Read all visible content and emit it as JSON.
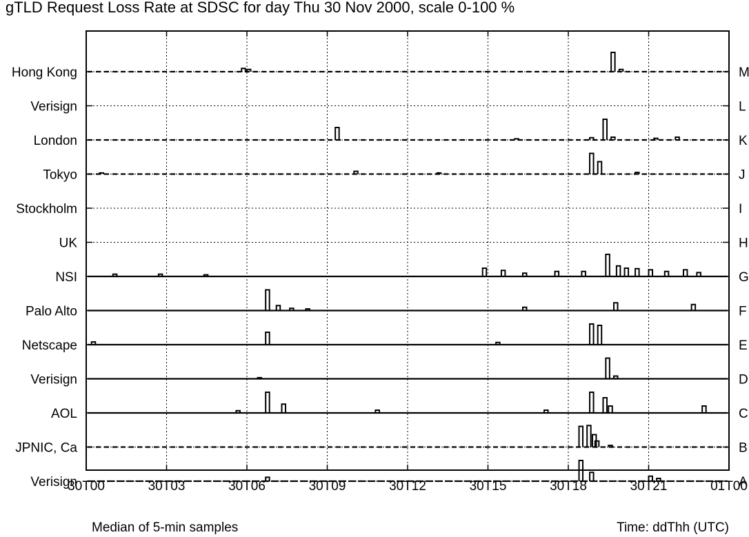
{
  "chart_data": {
    "type": "line",
    "title": "gTLD Request Loss Rate at SDSC for day Thu 30 Nov 2000, scale 0-100 %",
    "footer_left": "Median of 5-min samples",
    "xlabel": "Time: ddThh (UTC)",
    "x_ticks": [
      "30T00",
      "30T03",
      "30T06",
      "30T09",
      "30T12",
      "30T15",
      "30T18",
      "30T21",
      "01T00"
    ],
    "x_range_hours": [
      0,
      24
    ],
    "grid": true,
    "rows": [
      {
        "name": "Hong Kong",
        "letter": "M",
        "baseline": "dashed-upper",
        "spikes": [
          [
            5.8,
            12
          ],
          [
            6.0,
            8
          ],
          [
            19.6,
            70
          ],
          [
            19.9,
            8
          ]
        ]
      },
      {
        "name": "Verisign",
        "letter": "L",
        "baseline": "none",
        "spikes": []
      },
      {
        "name": "London",
        "letter": "K",
        "baseline": "dashed-upper",
        "spikes": [
          [
            9.3,
            45
          ],
          [
            16.0,
            4
          ],
          [
            18.8,
            8
          ],
          [
            19.3,
            75
          ],
          [
            19.6,
            10
          ],
          [
            21.2,
            6
          ],
          [
            22.0,
            10
          ]
        ]
      },
      {
        "name": "Tokyo",
        "letter": "J",
        "baseline": "dashed-upper",
        "spikes": [
          [
            0.5,
            4
          ],
          [
            10.0,
            10
          ],
          [
            13.1,
            4
          ],
          [
            18.8,
            75
          ],
          [
            19.1,
            45
          ],
          [
            20.5,
            6
          ]
        ]
      },
      {
        "name": "Stockholm",
        "letter": "I",
        "baseline": "none",
        "spikes": []
      },
      {
        "name": "UK",
        "letter": "H",
        "baseline": "none",
        "spikes": []
      },
      {
        "name": "NSI",
        "letter": "G",
        "baseline": "solid",
        "spikes": [
          [
            1.0,
            8
          ],
          [
            2.7,
            8
          ],
          [
            4.4,
            6
          ],
          [
            14.8,
            30
          ],
          [
            15.5,
            22
          ],
          [
            16.3,
            12
          ],
          [
            17.5,
            18
          ],
          [
            18.5,
            18
          ],
          [
            19.4,
            80
          ],
          [
            19.8,
            38
          ],
          [
            20.1,
            30
          ],
          [
            20.5,
            28
          ],
          [
            21.0,
            24
          ],
          [
            21.6,
            18
          ],
          [
            22.3,
            24
          ],
          [
            22.8,
            14
          ]
        ]
      },
      {
        "name": "Palo Alto",
        "letter": "F",
        "baseline": "solid",
        "spikes": [
          [
            6.7,
            75
          ],
          [
            7.1,
            18
          ],
          [
            7.6,
            8
          ],
          [
            8.2,
            6
          ],
          [
            16.3,
            12
          ],
          [
            19.7,
            28
          ],
          [
            22.6,
            22
          ]
        ]
      },
      {
        "name": "Netscape",
        "letter": "E",
        "baseline": "solid",
        "spikes": [
          [
            0.2,
            10
          ],
          [
            6.7,
            45
          ],
          [
            15.3,
            8
          ],
          [
            18.8,
            75
          ],
          [
            19.1,
            70
          ]
        ]
      },
      {
        "name": "Verisign",
        "letter": "D",
        "baseline": "solid",
        "spikes": [
          [
            6.4,
            4
          ],
          [
            19.4,
            75
          ],
          [
            19.7,
            10
          ]
        ]
      },
      {
        "name": "AOL",
        "letter": "C",
        "baseline": "solid",
        "spikes": [
          [
            5.6,
            8
          ],
          [
            6.7,
            75
          ],
          [
            7.3,
            32
          ],
          [
            10.8,
            10
          ],
          [
            17.1,
            10
          ],
          [
            18.8,
            75
          ],
          [
            19.3,
            55
          ],
          [
            19.5,
            25
          ],
          [
            23.0,
            25
          ]
        ]
      },
      {
        "name": "JPNIC, Ca",
        "letter": "B",
        "baseline": "dashed-upper",
        "spikes": [
          [
            18.4,
            75
          ],
          [
            18.7,
            78
          ],
          [
            18.9,
            45
          ],
          [
            19.0,
            22
          ],
          [
            19.5,
            6
          ]
        ]
      },
      {
        "name": "Verisign",
        "letter": "A",
        "baseline": "dashed",
        "spikes": [
          [
            6.7,
            14
          ],
          [
            18.4,
            75
          ],
          [
            18.8,
            32
          ],
          [
            21.0,
            18
          ],
          [
            21.3,
            10
          ]
        ]
      }
    ]
  }
}
